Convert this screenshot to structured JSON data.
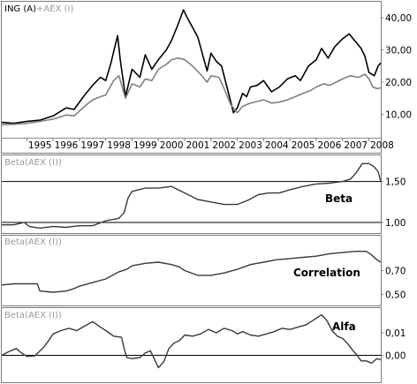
{
  "legend": {
    "ing": "ING (A)",
    "aex_sep": "+",
    "aex": "AEX (I)",
    "beta_caption": "Beta(AEX (I))",
    "corr_caption": "Beta(AEX (I))",
    "alfa_caption": "Beta(AEX (I))"
  },
  "colors": {
    "ing_line": "#000000",
    "aex_line": "#808080",
    "indicator_line": "#3a3a3a",
    "reference_line": "#000000",
    "frame": "#7a7a7a"
  },
  "chart_data": [
    {
      "type": "line",
      "title": "",
      "x_ticks": [
        "1995",
        "1996",
        "1997",
        "1998",
        "1999",
        "2000",
        "2001",
        "2002",
        "2003",
        "2004",
        "2005",
        "2006",
        "2007",
        "2008"
      ],
      "y_ticks": [
        "40,00",
        "30,00",
        "20,00",
        "10,00"
      ],
      "ylim": [
        3,
        45
      ],
      "xlim": [
        1994.05,
        2008.45
      ],
      "axis_side": "right",
      "grid": false,
      "series": [
        {
          "name": "ING (A)",
          "color": "#000000",
          "points": [
            [
              1994.05,
              7.5
            ],
            [
              1994.5,
              7.2
            ],
            [
              1995.0,
              7.8
            ],
            [
              1995.5,
              8.2
            ],
            [
              1996.0,
              9.5
            ],
            [
              1996.5,
              12.0
            ],
            [
              1996.8,
              11.5
            ],
            [
              1997.2,
              16.0
            ],
            [
              1997.5,
              19.0
            ],
            [
              1997.8,
              21.5
            ],
            [
              1998.0,
              20.5
            ],
            [
              1998.2,
              26.0
            ],
            [
              1998.45,
              34.5
            ],
            [
              1998.55,
              27.0
            ],
            [
              1998.75,
              15.5
            ],
            [
              1999.0,
              24.0
            ],
            [
              1999.3,
              21.5
            ],
            [
              1999.5,
              28.5
            ],
            [
              1999.75,
              24.0
            ],
            [
              2000.0,
              27.0
            ],
            [
              2000.3,
              30.0
            ],
            [
              2000.5,
              33.0
            ],
            [
              2000.75,
              38.0
            ],
            [
              2000.95,
              42.5
            ],
            [
              2001.1,
              40.0
            ],
            [
              2001.3,
              37.0
            ],
            [
              2001.5,
              34.0
            ],
            [
              2001.7,
              28.0
            ],
            [
              2001.85,
              23.5
            ],
            [
              2002.0,
              29.0
            ],
            [
              2002.2,
              26.5
            ],
            [
              2002.4,
              25.0
            ],
            [
              2002.7,
              15.5
            ],
            [
              2002.85,
              10.5
            ],
            [
              2003.0,
              12.0
            ],
            [
              2003.2,
              16.5
            ],
            [
              2003.35,
              15.5
            ],
            [
              2003.5,
              18.5
            ],
            [
              2003.75,
              19.0
            ],
            [
              2004.0,
              20.5
            ],
            [
              2004.3,
              17.0
            ],
            [
              2004.6,
              18.5
            ],
            [
              2004.9,
              21.0
            ],
            [
              2005.2,
              22.0
            ],
            [
              2005.4,
              20.5
            ],
            [
              2005.7,
              25.0
            ],
            [
              2006.0,
              27.0
            ],
            [
              2006.2,
              30.5
            ],
            [
              2006.45,
              27.5
            ],
            [
              2006.7,
              31.0
            ],
            [
              2007.0,
              33.5
            ],
            [
              2007.25,
              35.0
            ],
            [
              2007.5,
              32.5
            ],
            [
              2007.7,
              30.5
            ],
            [
              2007.85,
              28.0
            ],
            [
              2008.0,
              23.0
            ],
            [
              2008.2,
              22.0
            ],
            [
              2008.35,
              25.0
            ],
            [
              2008.45,
              26.0
            ]
          ]
        },
        {
          "name": "AEX (I)",
          "color": "#808080",
          "points": [
            [
              1994.05,
              6.8
            ],
            [
              1994.5,
              6.9
            ],
            [
              1995.0,
              7.2
            ],
            [
              1995.5,
              7.8
            ],
            [
              1996.0,
              8.5
            ],
            [
              1996.5,
              9.8
            ],
            [
              1996.8,
              9.5
            ],
            [
              1997.2,
              12.5
            ],
            [
              1997.5,
              14.5
            ],
            [
              1997.8,
              15.5
            ],
            [
              1998.0,
              16.0
            ],
            [
              1998.3,
              20.5
            ],
            [
              1998.5,
              22.0
            ],
            [
              1998.75,
              15.0
            ],
            [
              1999.0,
              19.5
            ],
            [
              1999.3,
              18.5
            ],
            [
              1999.5,
              21.0
            ],
            [
              1999.75,
              20.5
            ],
            [
              2000.0,
              24.0
            ],
            [
              2000.3,
              25.5
            ],
            [
              2000.5,
              27.0
            ],
            [
              2000.75,
              27.5
            ],
            [
              2001.0,
              27.0
            ],
            [
              2001.3,
              25.0
            ],
            [
              2001.6,
              22.5
            ],
            [
              2001.85,
              20.0
            ],
            [
              2002.0,
              22.0
            ],
            [
              2002.3,
              21.5
            ],
            [
              2002.5,
              18.0
            ],
            [
              2002.75,
              13.0
            ],
            [
              2003.0,
              10.5
            ],
            [
              2003.2,
              12.5
            ],
            [
              2003.5,
              13.5
            ],
            [
              2003.75,
              14.0
            ],
            [
              2004.0,
              14.5
            ],
            [
              2004.3,
              13.5
            ],
            [
              2004.6,
              13.8
            ],
            [
              2004.9,
              14.5
            ],
            [
              2005.2,
              15.5
            ],
            [
              2005.5,
              16.5
            ],
            [
              2005.8,
              17.5
            ],
            [
              2006.0,
              18.5
            ],
            [
              2006.3,
              19.5
            ],
            [
              2006.5,
              19.0
            ],
            [
              2006.75,
              20.0
            ],
            [
              2007.0,
              21.0
            ],
            [
              2007.3,
              22.0
            ],
            [
              2007.6,
              21.5
            ],
            [
              2007.85,
              22.5
            ],
            [
              2008.0,
              21.0
            ],
            [
              2008.15,
              18.5
            ],
            [
              2008.3,
              18.0
            ],
            [
              2008.45,
              18.2
            ]
          ]
        }
      ]
    },
    {
      "type": "line",
      "title": "Beta",
      "y_ticks": [
        "1,50",
        "1,00"
      ],
      "ylim": [
        0.87,
        1.82
      ],
      "xlim": [
        1994.05,
        2008.45
      ],
      "axis_side": "right",
      "grid": false,
      "reference_lines": [
        1.5,
        1.0
      ],
      "series": [
        {
          "name": "",
          "color": "#3a3a3a",
          "points": [
            [
              1994.05,
              0.97
            ],
            [
              1994.5,
              0.97
            ],
            [
              1994.9,
              1.0
            ],
            [
              1995.1,
              0.95
            ],
            [
              1995.5,
              0.93
            ],
            [
              1996.0,
              0.95
            ],
            [
              1996.5,
              0.94
            ],
            [
              1997.0,
              0.96
            ],
            [
              1997.5,
              0.96
            ],
            [
              1998.0,
              1.02
            ],
            [
              1998.5,
              1.05
            ],
            [
              1998.7,
              1.12
            ],
            [
              1998.85,
              1.3
            ],
            [
              1999.0,
              1.38
            ],
            [
              1999.5,
              1.42
            ],
            [
              2000.0,
              1.42
            ],
            [
              2000.5,
              1.44
            ],
            [
              2001.0,
              1.36
            ],
            [
              2001.5,
              1.28
            ],
            [
              2002.0,
              1.25
            ],
            [
              2002.5,
              1.22
            ],
            [
              2003.0,
              1.22
            ],
            [
              2003.4,
              1.27
            ],
            [
              2003.8,
              1.34
            ],
            [
              2004.2,
              1.36
            ],
            [
              2004.6,
              1.36
            ],
            [
              2005.0,
              1.4
            ],
            [
              2005.5,
              1.44
            ],
            [
              2006.0,
              1.47
            ],
            [
              2006.5,
              1.48
            ],
            [
              2007.0,
              1.5
            ],
            [
              2007.3,
              1.53
            ],
            [
              2007.5,
              1.6
            ],
            [
              2007.75,
              1.72
            ],
            [
              2008.0,
              1.72
            ],
            [
              2008.2,
              1.68
            ],
            [
              2008.35,
              1.62
            ],
            [
              2008.45,
              1.5
            ]
          ]
        }
      ]
    },
    {
      "type": "line",
      "title": "Correlation",
      "y_ticks": [
        "0,70",
        "0,50"
      ],
      "ylim": [
        0.41,
        0.99
      ],
      "xlim": [
        1994.05,
        2008.45
      ],
      "axis_side": "right",
      "grid": false,
      "series": [
        {
          "name": "",
          "color": "#3a3a3a",
          "points": [
            [
              1994.05,
              0.58
            ],
            [
              1994.5,
              0.59
            ],
            [
              1995.0,
              0.59
            ],
            [
              1995.4,
              0.59
            ],
            [
              1995.5,
              0.53
            ],
            [
              1996.0,
              0.52
            ],
            [
              1996.5,
              0.53
            ],
            [
              1996.8,
              0.55
            ],
            [
              1997.0,
              0.57
            ],
            [
              1997.5,
              0.6
            ],
            [
              1998.0,
              0.63
            ],
            [
              1998.5,
              0.69
            ],
            [
              1998.8,
              0.71
            ],
            [
              1999.0,
              0.74
            ],
            [
              1999.5,
              0.76
            ],
            [
              2000.0,
              0.77
            ],
            [
              2000.5,
              0.75
            ],
            [
              2000.8,
              0.73
            ],
            [
              2001.0,
              0.7
            ],
            [
              2001.5,
              0.66
            ],
            [
              2002.0,
              0.66
            ],
            [
              2002.5,
              0.68
            ],
            [
              2003.0,
              0.71
            ],
            [
              2003.5,
              0.75
            ],
            [
              2004.0,
              0.77
            ],
            [
              2004.5,
              0.79
            ],
            [
              2005.0,
              0.8
            ],
            [
              2005.5,
              0.81
            ],
            [
              2006.0,
              0.82
            ],
            [
              2006.5,
              0.84
            ],
            [
              2007.0,
              0.85
            ],
            [
              2007.5,
              0.86
            ],
            [
              2007.9,
              0.86
            ],
            [
              2008.1,
              0.83
            ],
            [
              2008.3,
              0.79
            ],
            [
              2008.45,
              0.77
            ]
          ]
        }
      ]
    },
    {
      "type": "line",
      "title": "Alfa",
      "y_ticks": [
        "0,01",
        "0,00"
      ],
      "ylim": [
        -0.012,
        0.021
      ],
      "xlim": [
        1994.05,
        2008.45
      ],
      "axis_side": "right",
      "grid": false,
      "reference_lines": [
        0.0
      ],
      "series": [
        {
          "name": "",
          "color": "#3a3a3a",
          "points": [
            [
              1994.05,
              0.0
            ],
            [
              1994.3,
              0.0015
            ],
            [
              1994.6,
              0.003
            ],
            [
              1994.8,
              0.001
            ],
            [
              1995.0,
              -0.0005
            ],
            [
              1995.3,
              -0.0003
            ],
            [
              1995.6,
              0.003
            ],
            [
              1995.8,
              0.006
            ],
            [
              1996.0,
              0.0095
            ],
            [
              1996.3,
              0.011
            ],
            [
              1996.6,
              0.012
            ],
            [
              1996.9,
              0.011
            ],
            [
              1997.2,
              0.013
            ],
            [
              1997.5,
              0.015
            ],
            [
              1997.8,
              0.0125
            ],
            [
              1998.0,
              0.011
            ],
            [
              1998.3,
              0.0085
            ],
            [
              1998.6,
              0.008
            ],
            [
              1998.7,
              0.003
            ],
            [
              1998.8,
              -0.001
            ],
            [
              1999.0,
              -0.0015
            ],
            [
              1999.3,
              -0.001
            ],
            [
              1999.5,
              0.001
            ],
            [
              1999.7,
              0.002
            ],
            [
              1999.9,
              -0.003
            ],
            [
              2000.0,
              -0.0055
            ],
            [
              2000.2,
              -0.003
            ],
            [
              2000.4,
              0.003
            ],
            [
              2000.6,
              0.0055
            ],
            [
              2000.8,
              0.0065
            ],
            [
              2001.0,
              0.009
            ],
            [
              2001.3,
              0.0085
            ],
            [
              2001.6,
              0.0095
            ],
            [
              2001.9,
              0.0115
            ],
            [
              2002.2,
              0.01
            ],
            [
              2002.5,
              0.012
            ],
            [
              2002.8,
              0.011
            ],
            [
              2003.0,
              0.0095
            ],
            [
              2003.2,
              0.0105
            ],
            [
              2003.5,
              0.009
            ],
            [
              2003.8,
              0.0085
            ],
            [
              2004.1,
              0.0095
            ],
            [
              2004.4,
              0.0105
            ],
            [
              2004.7,
              0.012
            ],
            [
              2005.0,
              0.0115
            ],
            [
              2005.3,
              0.0125
            ],
            [
              2005.6,
              0.0135
            ],
            [
              2005.8,
              0.015
            ],
            [
              2006.0,
              0.0165
            ],
            [
              2006.2,
              0.018
            ],
            [
              2006.4,
              0.0155
            ],
            [
              2006.6,
              0.011
            ],
            [
              2006.8,
              0.0085
            ],
            [
              2007.0,
              0.0075
            ],
            [
              2007.2,
              0.005
            ],
            [
              2007.4,
              0.002
            ],
            [
              2007.55,
              0.0
            ],
            [
              2007.7,
              -0.0025
            ],
            [
              2007.9,
              -0.0025
            ],
            [
              2008.1,
              -0.0035
            ],
            [
              2008.3,
              -0.0015
            ],
            [
              2008.45,
              -0.002
            ]
          ]
        }
      ]
    }
  ]
}
